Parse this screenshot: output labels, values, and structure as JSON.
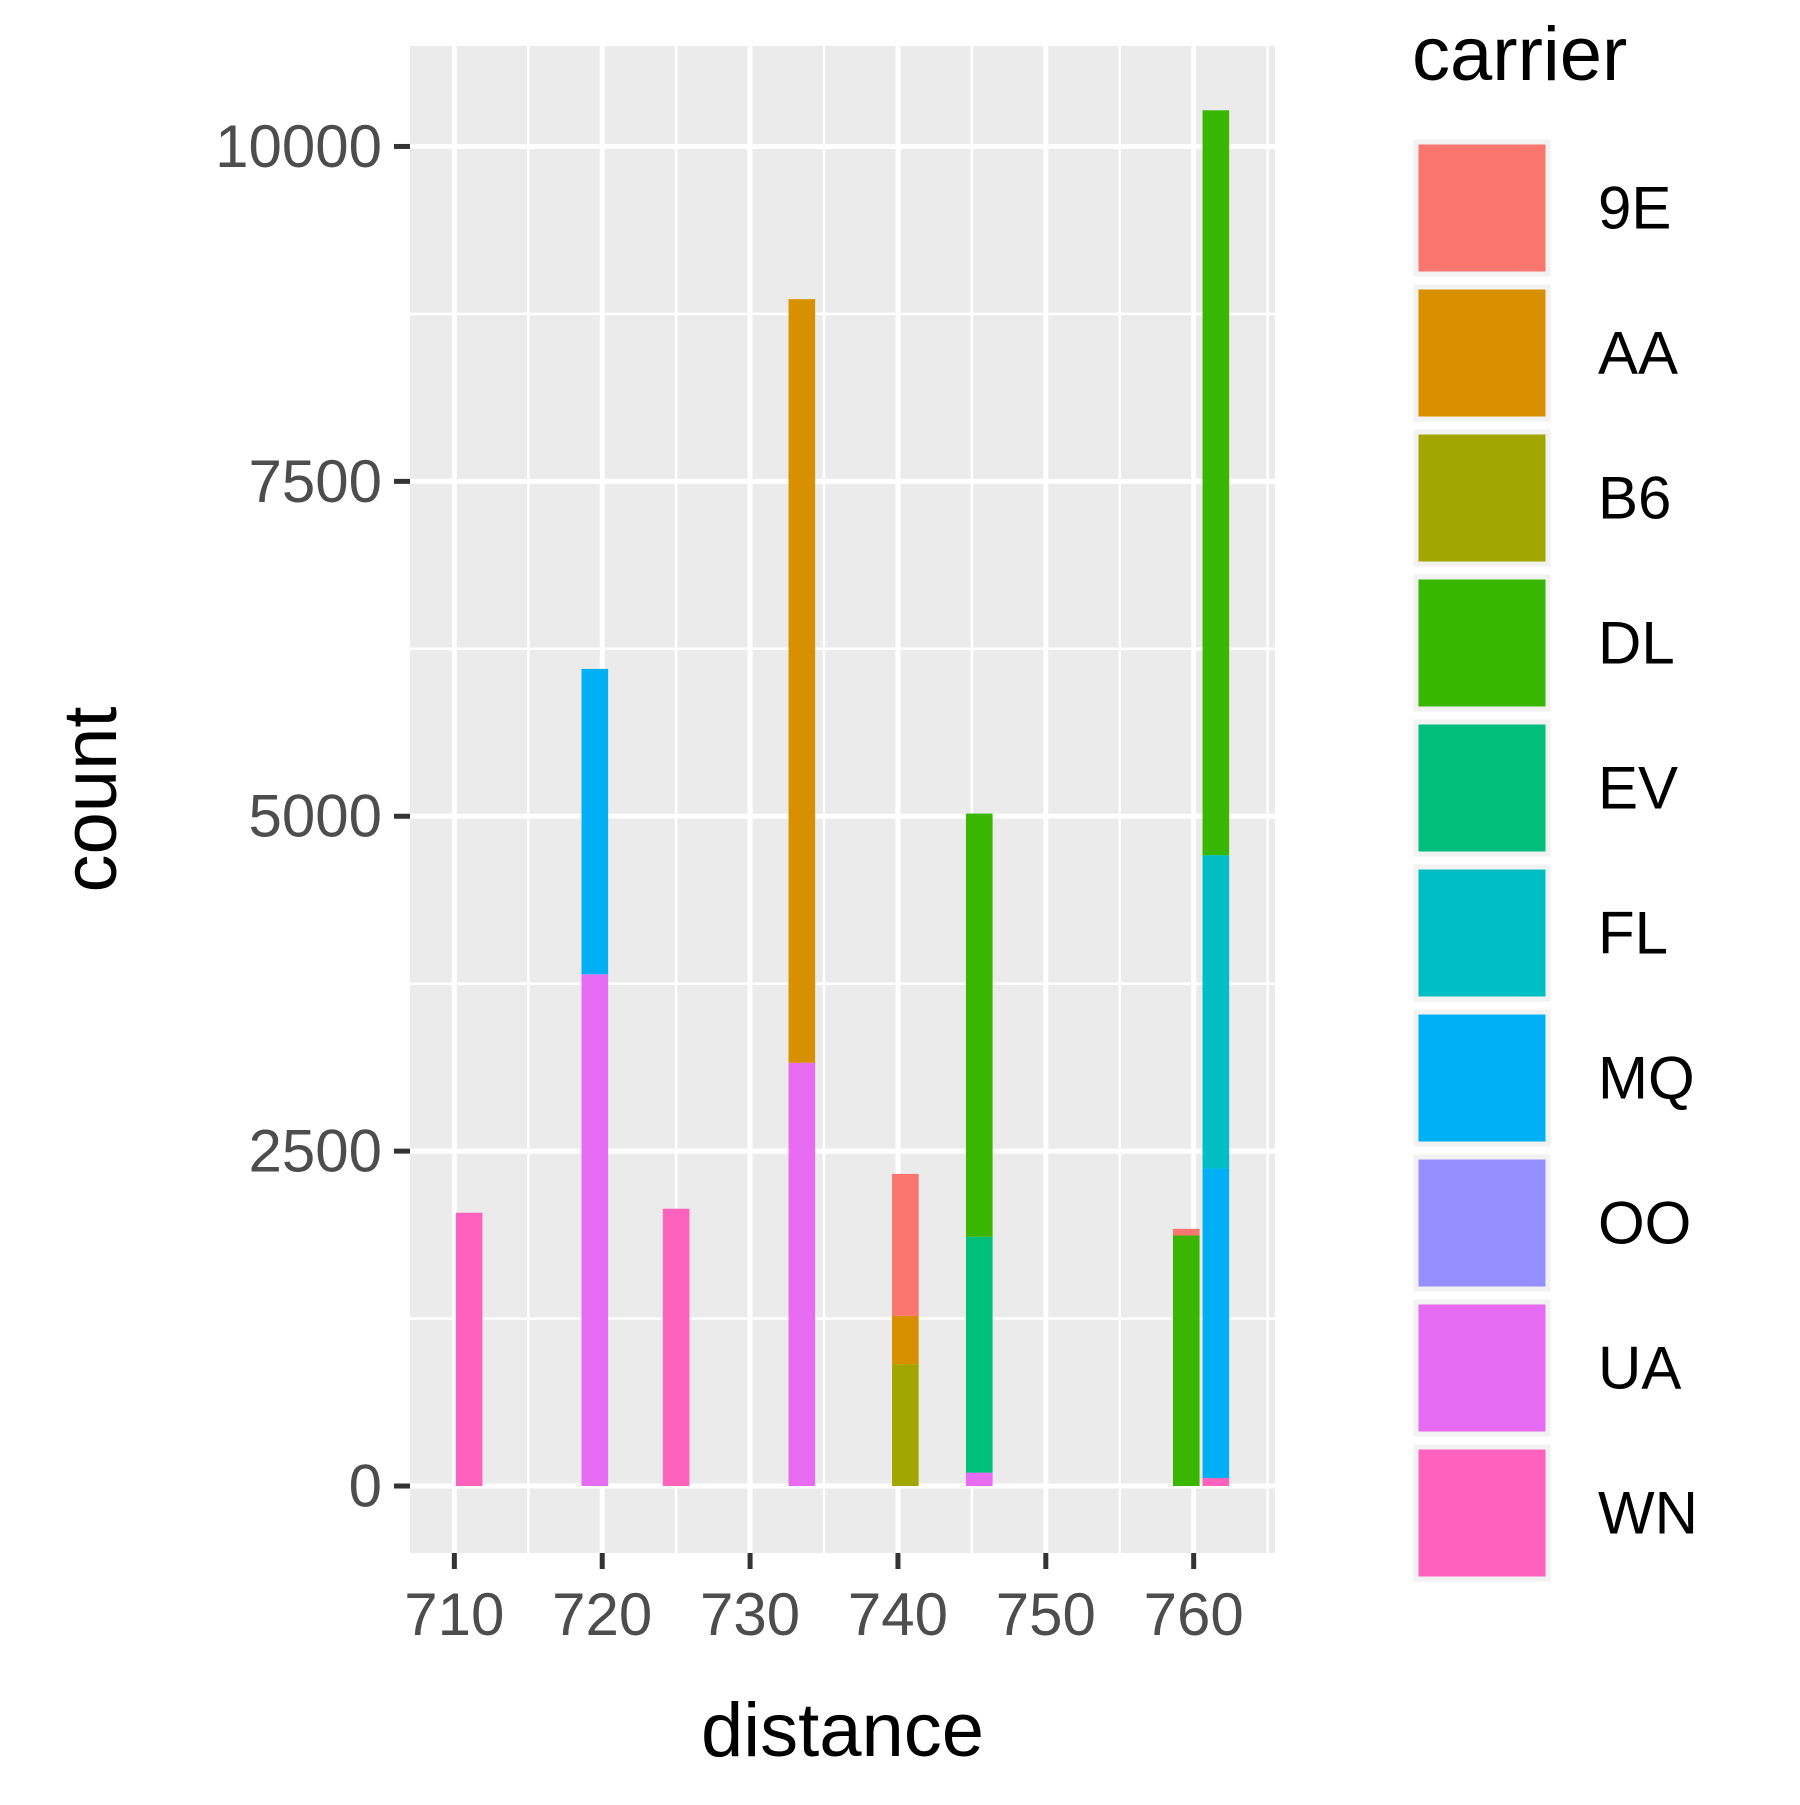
{
  "chart_data": {
    "type": "bar",
    "stacked": true,
    "xlabel": "distance",
    "ylabel": "count",
    "xlim": [
      707,
      765.5
    ],
    "ylim": [
      -500,
      10750
    ],
    "x_ticks": [
      710,
      720,
      730,
      740,
      750,
      760
    ],
    "y_ticks": [
      0,
      2500,
      5000,
      7500,
      10000
    ],
    "grid": true,
    "bar_width": 1.8,
    "legend": {
      "title": "carrier",
      "position": "right",
      "entries": [
        {
          "name": "9E",
          "color": "#F8766D"
        },
        {
          "name": "AA",
          "color": "#D89000"
        },
        {
          "name": "B6",
          "color": "#A3A500"
        },
        {
          "name": "DL",
          "color": "#39B600"
        },
        {
          "name": "EV",
          "color": "#00BF7D"
        },
        {
          "name": "FL",
          "color": "#00BFC4"
        },
        {
          "name": "MQ",
          "color": "#00B0F6"
        },
        {
          "name": "OO",
          "color": "#9590FF"
        },
        {
          "name": "UA",
          "color": "#E76BF3"
        },
        {
          "name": "WN",
          "color": "#FF62BC"
        }
      ]
    },
    "bars": [
      {
        "x": 711,
        "segments": [
          {
            "carrier": "WN",
            "value": 2040
          }
        ]
      },
      {
        "x": 719.5,
        "segments": [
          {
            "carrier": "UA",
            "value": 3820
          },
          {
            "carrier": "MQ",
            "value": 2280
          }
        ]
      },
      {
        "x": 725,
        "segments": [
          {
            "carrier": "WN",
            "value": 2070
          }
        ]
      },
      {
        "x": 733.5,
        "segments": [
          {
            "carrier": "UA",
            "value": 3160
          },
          {
            "carrier": "AA",
            "value": 5700
          }
        ]
      },
      {
        "x": 740.5,
        "segments": [
          {
            "carrier": "B6",
            "value": 910
          },
          {
            "carrier": "AA",
            "value": 360
          },
          {
            "carrier": "9E",
            "value": 1060
          }
        ]
      },
      {
        "x": 745.5,
        "segments": [
          {
            "carrier": "UA",
            "value": 100
          },
          {
            "carrier": "EV",
            "value": 1760
          },
          {
            "carrier": "DL",
            "value": 3160
          }
        ]
      },
      {
        "x": 759.5,
        "segments": [
          {
            "carrier": "DL",
            "value": 1870
          },
          {
            "carrier": "9E",
            "value": 50
          }
        ]
      },
      {
        "x": 761.5,
        "segments": [
          {
            "carrier": "WN",
            "value": 60
          },
          {
            "carrier": "MQ",
            "value": 2310
          },
          {
            "carrier": "FL",
            "value": 2340
          },
          {
            "carrier": "DL",
            "value": 5560
          }
        ]
      }
    ]
  }
}
